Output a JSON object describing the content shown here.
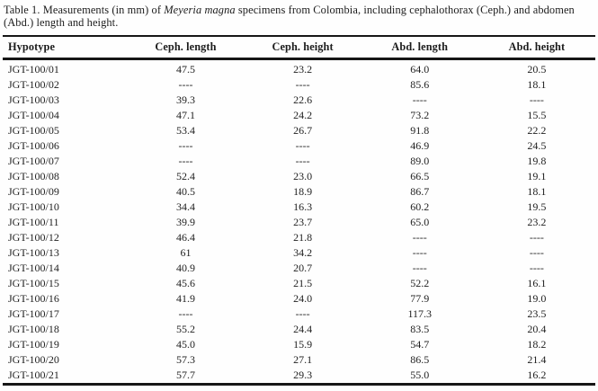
{
  "caption": {
    "prefix": "Table 1. Measurements (in mm) of ",
    "species": "Meyeria magna",
    "suffix": " specimens from Colombia, including cephalothorax (Ceph.) and abdomen (Abd.) length and height."
  },
  "table": {
    "columns": [
      "Hypotype",
      "Ceph. length",
      "Ceph. height",
      "Abd. length",
      "Abd. height"
    ],
    "missing_marker": "----",
    "rows": [
      [
        "JGT-100/01",
        "47.5",
        "23.2",
        "64.0",
        "20.5"
      ],
      [
        "JGT-100/02",
        "----",
        "----",
        "85.6",
        "18.1"
      ],
      [
        "JGT-100/03",
        "39.3",
        "22.6",
        "----",
        "----"
      ],
      [
        "JGT-100/04",
        "47.1",
        "24.2",
        "73.2",
        "15.5"
      ],
      [
        "JGT-100/05",
        "53.4",
        "26.7",
        "91.8",
        "22.2"
      ],
      [
        "JGT-100/06",
        "----",
        "----",
        "46.9",
        "24.5"
      ],
      [
        "JGT-100/07",
        "----",
        "----",
        "89.0",
        "19.8"
      ],
      [
        "JGT-100/08",
        "52.4",
        "23.0",
        "66.5",
        "19.1"
      ],
      [
        "JGT-100/09",
        "40.5",
        "18.9",
        "86.7",
        "18.1"
      ],
      [
        "JGT-100/10",
        "34.4",
        "16.3",
        "60.2",
        "19.5"
      ],
      [
        "JGT-100/11",
        "39.9",
        "23.7",
        "65.0",
        "23.2"
      ],
      [
        "JGT-100/12",
        "46.4",
        "21.8",
        "----",
        "----"
      ],
      [
        "JGT-100/13",
        "61",
        "34.2",
        "----",
        "----"
      ],
      [
        "JGT-100/14",
        "40.9",
        "20.7",
        "----",
        "----"
      ],
      [
        "JGT-100/15",
        "45.6",
        "21.5",
        "52.2",
        "16.1"
      ],
      [
        "JGT-100/16",
        "41.9",
        "24.0",
        "77.9",
        "19.0"
      ],
      [
        "JGT-100/17",
        "----",
        "----",
        "117.3",
        "23.5"
      ],
      [
        "JGT-100/18",
        "55.2",
        "24.4",
        "83.5",
        "20.4"
      ],
      [
        "JGT-100/19",
        "45.0",
        "15.9",
        "54.7",
        "18.2"
      ],
      [
        "JGT-100/20",
        "57.3",
        "27.1",
        "86.5",
        "21.4"
      ],
      [
        "JGT-100/21",
        "57.7",
        "29.3",
        "55.0",
        "16.2"
      ]
    ]
  },
  "colors": {
    "text": "#1c1c1c",
    "rule": "#161616",
    "background": "#fefefe"
  }
}
